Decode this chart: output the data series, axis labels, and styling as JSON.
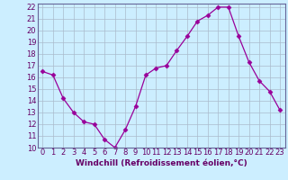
{
  "x": [
    0,
    1,
    2,
    3,
    4,
    5,
    6,
    7,
    8,
    9,
    10,
    11,
    12,
    13,
    14,
    15,
    16,
    17,
    18,
    19,
    20,
    21,
    22,
    23
  ],
  "y": [
    16.5,
    16.2,
    14.2,
    13.0,
    12.2,
    12.0,
    10.7,
    10.0,
    11.5,
    13.5,
    16.2,
    16.8,
    17.0,
    18.3,
    19.5,
    20.8,
    21.3,
    22.0,
    22.0,
    19.5,
    17.3,
    15.7,
    14.8,
    13.2
  ],
  "line_color": "#990099",
  "marker": "D",
  "marker_size": 2.5,
  "bg_color": "#cceeff",
  "grid_color": "#aabbcc",
  "xlabel": "Windchill (Refroidissement éolien,°C)",
  "ylim": [
    10,
    22
  ],
  "xlim": [
    -0.5,
    23.5
  ],
  "yticks": [
    10,
    11,
    12,
    13,
    14,
    15,
    16,
    17,
    18,
    19,
    20,
    21,
    22
  ],
  "xticks": [
    0,
    1,
    2,
    3,
    4,
    5,
    6,
    7,
    8,
    9,
    10,
    11,
    12,
    13,
    14,
    15,
    16,
    17,
    18,
    19,
    20,
    21,
    22,
    23
  ],
  "tick_color": "#660066",
  "label_fontsize": 6.5,
  "tick_fontsize": 6,
  "spine_color": "#666699"
}
